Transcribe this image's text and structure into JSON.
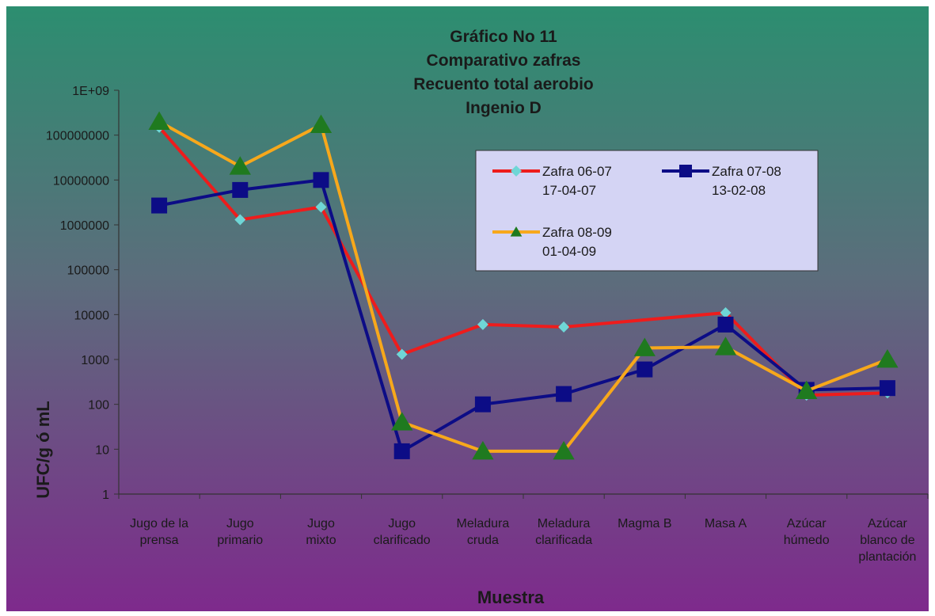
{
  "chart_data": {
    "type": "line",
    "title": [
      "Gráfico No 11",
      "Comparativo zafras",
      "Recuento total aerobio",
      "Ingenio D"
    ],
    "xlabel": "Muestra",
    "ylabel": "UFC/g ó mL",
    "yscale": "log",
    "ylim": [
      1,
      1000000000
    ],
    "yticks": [
      "1",
      "10",
      "100",
      "1000",
      "10000",
      "100000",
      "1000000",
      "10000000",
      "100000000",
      "1E+09"
    ],
    "categories": [
      [
        "Jugo de la",
        "prensa"
      ],
      [
        "Jugo",
        "primario"
      ],
      [
        "Jugo",
        "mixto"
      ],
      [
        "Jugo",
        "clarificado"
      ],
      [
        "Meladura",
        "cruda"
      ],
      [
        "Meladura",
        "clarificada"
      ],
      [
        "Magma B"
      ],
      [
        "Masa A"
      ],
      [
        "Azúcar",
        "húmedo"
      ],
      [
        "Azúcar",
        "blanco de",
        "plantación"
      ]
    ],
    "legend_position": "upper-right",
    "grid": false,
    "series": [
      {
        "name": [
          "Zafra 06-07",
          "17-04-07"
        ],
        "line_color": "#ee1c1c",
        "marker": "diamond",
        "marker_color": "#6fd6d6",
        "values": [
          150000000,
          1300000,
          2500000,
          1300,
          6000,
          5300,
          null,
          11000,
          160,
          180
        ]
      },
      {
        "name": [
          "Zafra 07-08",
          "13-02-08"
        ],
        "line_color": "#0c0c86",
        "marker": "square",
        "marker_color": "#0c0c86",
        "values": [
          2700000,
          6000000,
          10000000,
          9,
          100,
          170,
          600,
          6000,
          210,
          230
        ]
      },
      {
        "name": [
          "Zafra 08-09",
          "01-04-09"
        ],
        "line_color": "#f7a81b",
        "marker": "triangle",
        "marker_color": "#1f7a1f",
        "values": [
          200000000,
          20000000,
          170000000,
          40,
          9,
          9,
          1800,
          1900,
          200,
          1000
        ]
      }
    ]
  }
}
